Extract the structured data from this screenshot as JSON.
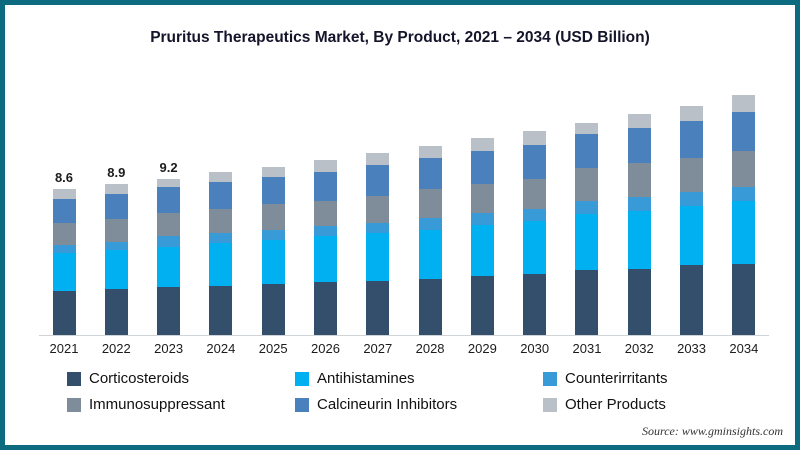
{
  "frame": {
    "border_color": "#0c6b7e",
    "background": "#ffffff"
  },
  "title": "Pruritus Therapeutics Market, By Product, 2021 – 2034 (USD Billion)",
  "source": "Source: www.gminsights.com",
  "chart_data": {
    "type": "bar",
    "stacked": true,
    "title": "Pruritus Therapeutics Market, By Product, 2021 – 2034 (USD Billion)",
    "xlabel": "",
    "ylabel": "USD Billion",
    "ylim": [
      0,
      15
    ],
    "grid": false,
    "legend_position": "bottom",
    "categories": [
      "2021",
      "2022",
      "2023",
      "2024",
      "2025",
      "2026",
      "2027",
      "2028",
      "2029",
      "2030",
      "2031",
      "2032",
      "2033",
      "2034"
    ],
    "series": [
      {
        "name": "Corticosteroids",
        "color": "#344f6b",
        "values": [
          2.6,
          2.7,
          2.8,
          2.9,
          3.0,
          3.1,
          3.2,
          3.3,
          3.5,
          3.6,
          3.8,
          3.9,
          4.1,
          4.2
        ]
      },
      {
        "name": "Antihistamines",
        "color": "#00b0f0",
        "values": [
          2.2,
          2.3,
          2.4,
          2.5,
          2.6,
          2.7,
          2.8,
          2.9,
          3.0,
          3.1,
          3.3,
          3.4,
          3.5,
          3.7
        ]
      },
      {
        "name": "Counterirritants",
        "color": "#389bd8",
        "values": [
          0.5,
          0.5,
          0.6,
          0.6,
          0.6,
          0.6,
          0.6,
          0.7,
          0.7,
          0.7,
          0.8,
          0.8,
          0.8,
          0.8
        ]
      },
      {
        "name": "Immunosuppressant",
        "color": "#7f8c99",
        "values": [
          1.3,
          1.3,
          1.4,
          1.4,
          1.5,
          1.5,
          1.6,
          1.7,
          1.7,
          1.8,
          1.9,
          2.0,
          2.0,
          2.1
        ]
      },
      {
        "name": "Calcineurin Inhibitors",
        "color": "#4a80bb",
        "values": [
          1.4,
          1.5,
          1.5,
          1.6,
          1.6,
          1.7,
          1.8,
          1.8,
          1.9,
          2.0,
          2.0,
          2.1,
          2.2,
          2.3
        ]
      },
      {
        "name": "Other Products",
        "color": "#b9c0c7",
        "values": [
          0.6,
          0.6,
          0.5,
          0.6,
          0.6,
          0.7,
          0.7,
          0.7,
          0.8,
          0.8,
          0.7,
          0.8,
          0.9,
          1.0
        ]
      }
    ],
    "totals": [
      8.6,
      8.9,
      9.2,
      9.6,
      9.9,
      10.3,
      10.7,
      11.1,
      11.6,
      12.0,
      12.5,
      13.0,
      13.5,
      14.1
    ],
    "bar_labels": [
      "8.6",
      "8.9",
      "9.2",
      "",
      "",
      "",
      "",
      "",
      "",
      "",
      "",
      "",
      "",
      ""
    ]
  }
}
